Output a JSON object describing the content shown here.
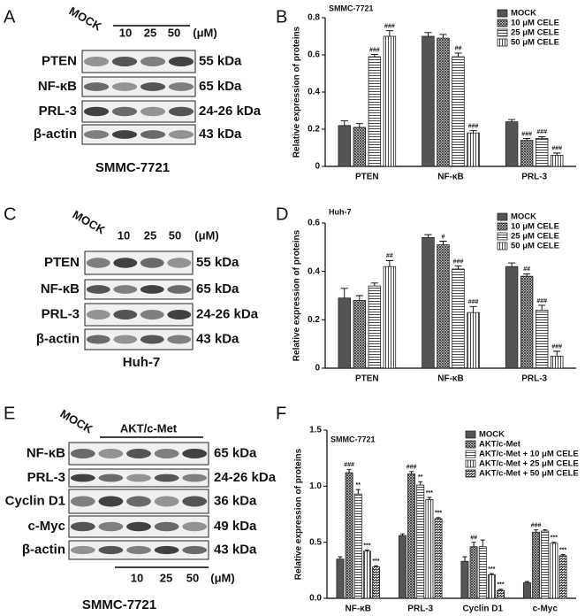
{
  "blots": [
    {
      "label": "A",
      "mock": "MOCK",
      "concentrations": [
        "10",
        "25",
        "50"
      ],
      "unit": "(μM)",
      "rows": [
        {
          "protein": "PTEN",
          "size": "55 kDa"
        },
        {
          "protein": "NF-κB",
          "size": "65 kDa"
        },
        {
          "protein": "PRL-3",
          "size": "24-26 kDa"
        },
        {
          "protein": "β-actin",
          "size": "43 kDa"
        }
      ],
      "cell_line": "SMMC-7721"
    },
    {
      "label": "C",
      "mock": "MOCK",
      "concentrations": [
        "10",
        "25",
        "50"
      ],
      "unit": "(μM)",
      "rows": [
        {
          "protein": "PTEN",
          "size": "55 kDa"
        },
        {
          "protein": "NF-κB",
          "size": "65 kDa"
        },
        {
          "protein": "PRL-3",
          "size": "24-26 kDa"
        },
        {
          "protein": "β-actin",
          "size": "43 kDa"
        }
      ],
      "cell_line": "Huh-7"
    },
    {
      "label": "E",
      "mock": "MOCK",
      "group": "AKT/c-Met",
      "concentrations": [
        "10",
        "25",
        "50"
      ],
      "unit": "(μM)",
      "rows": [
        {
          "protein": "NF-κB",
          "size": "65 kDa"
        },
        {
          "protein": "PRL-3",
          "size": "24-26 kDa"
        },
        {
          "protein": "Cyclin D1",
          "size": "36 kDa"
        },
        {
          "protein": "c-Myc",
          "size": "49 kDa"
        },
        {
          "protein": "β-actin",
          "size": "43 kDa"
        }
      ],
      "cell_line": "SMMC-7721"
    }
  ],
  "chart_data": [
    {
      "panel": "B",
      "type": "bar",
      "title": "SMMC-7721",
      "ylabel": "Relative expression of proteins",
      "categories": [
        "PTEN",
        "NF-κB",
        "PRL-3"
      ],
      "ylim": [
        0,
        0.8
      ],
      "yticks": [
        0,
        0.2,
        0.4,
        0.6,
        0.8
      ],
      "legend": "upper right",
      "series": [
        {
          "name": "MOCK",
          "color": "#555555",
          "pattern": "solid",
          "values": [
            0.22,
            0.7,
            0.24
          ],
          "errors": [
            0.025,
            0.02,
            0.012
          ],
          "significance": [
            null,
            null,
            null
          ]
        },
        {
          "name": "10 μM CELE",
          "color": "#333333",
          "pattern": "crosshatch",
          "values": [
            0.21,
            0.69,
            0.14
          ],
          "errors": [
            0.02,
            0.02,
            0.01
          ],
          "significance": [
            null,
            null,
            "###"
          ]
        },
        {
          "name": "25 μM CELE",
          "color": "#333333",
          "pattern": "horizontal",
          "values": [
            0.59,
            0.59,
            0.15
          ],
          "errors": [
            0.012,
            0.02,
            0.01
          ],
          "significance": [
            "###",
            "##",
            "###"
          ]
        },
        {
          "name": "50 μM CELE",
          "color": "#333333",
          "pattern": "vertical",
          "values": [
            0.7,
            0.18,
            0.06
          ],
          "errors": [
            0.03,
            0.012,
            0.012
          ],
          "significance": [
            "###",
            "###",
            "###"
          ]
        }
      ]
    },
    {
      "panel": "D",
      "type": "bar",
      "title": "Huh-7",
      "ylabel": "Relative expression of proteins",
      "categories": [
        "PTEN",
        "NF-κB",
        "PRL-3"
      ],
      "ylim": [
        0,
        0.6
      ],
      "yticks": [
        0,
        0.2,
        0.4,
        0.6
      ],
      "legend": "upper right",
      "series": [
        {
          "name": "MOCK",
          "color": "#555555",
          "pattern": "solid",
          "values": [
            0.29,
            0.54,
            0.42
          ],
          "errors": [
            0.04,
            0.012,
            0.015
          ],
          "significance": [
            null,
            null,
            null
          ]
        },
        {
          "name": "10 μM CELE",
          "color": "#333333",
          "pattern": "crosshatch",
          "values": [
            0.28,
            0.51,
            0.38
          ],
          "errors": [
            0.02,
            0.015,
            0.01
          ],
          "significance": [
            null,
            "#",
            "##"
          ]
        },
        {
          "name": "25 μM CELE",
          "color": "#333333",
          "pattern": "horizontal",
          "values": [
            0.34,
            0.41,
            0.24
          ],
          "errors": [
            0.012,
            0.012,
            0.02
          ],
          "significance": [
            null,
            "###",
            "###"
          ]
        },
        {
          "name": "50 μM CELE",
          "color": "#333333",
          "pattern": "vertical",
          "values": [
            0.42,
            0.23,
            0.05
          ],
          "errors": [
            0.025,
            0.025,
            0.02
          ],
          "significance": [
            "##",
            "###",
            "###"
          ]
        }
      ]
    },
    {
      "panel": "F",
      "type": "bar",
      "title": "SMMC-7721",
      "ylabel": "Relative expression of proteins",
      "categories": [
        "NF-κB",
        "PRL-3",
        "Cyclin D1",
        "c-Myc"
      ],
      "ylim": [
        0,
        1.5
      ],
      "yticks": [
        {
          "value": 0,
          "label": "0.0"
        },
        0.5,
        {
          "value": 1,
          "label": "1.0"
        },
        1.5
      ],
      "legend": "upper right",
      "series": [
        {
          "name": "MOCK",
          "color": "#555555",
          "pattern": "solid",
          "values": [
            0.35,
            0.56,
            0.33,
            0.14
          ],
          "errors": [
            0.02,
            0.015,
            0.04,
            0.01
          ],
          "significance": [
            null,
            null,
            null,
            null
          ]
        },
        {
          "name": "AKT/c-Met",
          "color": "#333333",
          "pattern": "crosshatch",
          "values": [
            1.12,
            1.11,
            0.46,
            0.59
          ],
          "errors": [
            0.03,
            0.02,
            0.04,
            0.02
          ],
          "significance": [
            "###",
            "###",
            "##",
            "###"
          ]
        },
        {
          "name": "AKT/c-Met + 10 μM CELE",
          "color": "#333333",
          "pattern": "horizontal",
          "values": [
            0.93,
            1.01,
            0.46,
            0.6
          ],
          "errors": [
            0.04,
            0.03,
            0.06,
            0.01
          ],
          "significance": [
            "**",
            "**",
            null,
            null
          ]
        },
        {
          "name": "AKT/c-Met + 25 μM CELE",
          "color": "#333333",
          "pattern": "vertical",
          "values": [
            0.42,
            0.88,
            0.21,
            0.49
          ],
          "errors": [
            0.01,
            0.02,
            0.01,
            0.01
          ],
          "significance": [
            "***",
            "***",
            "***",
            "***"
          ]
        },
        {
          "name": "AKT/c-Met + 50 μM CELE",
          "color": "#333333",
          "pattern": "diagonal",
          "values": [
            0.28,
            0.71,
            0.07,
            0.38
          ],
          "errors": [
            0.01,
            0.01,
            0.01,
            0.01
          ],
          "significance": [
            "***",
            "***",
            "***",
            "***"
          ]
        }
      ]
    }
  ]
}
